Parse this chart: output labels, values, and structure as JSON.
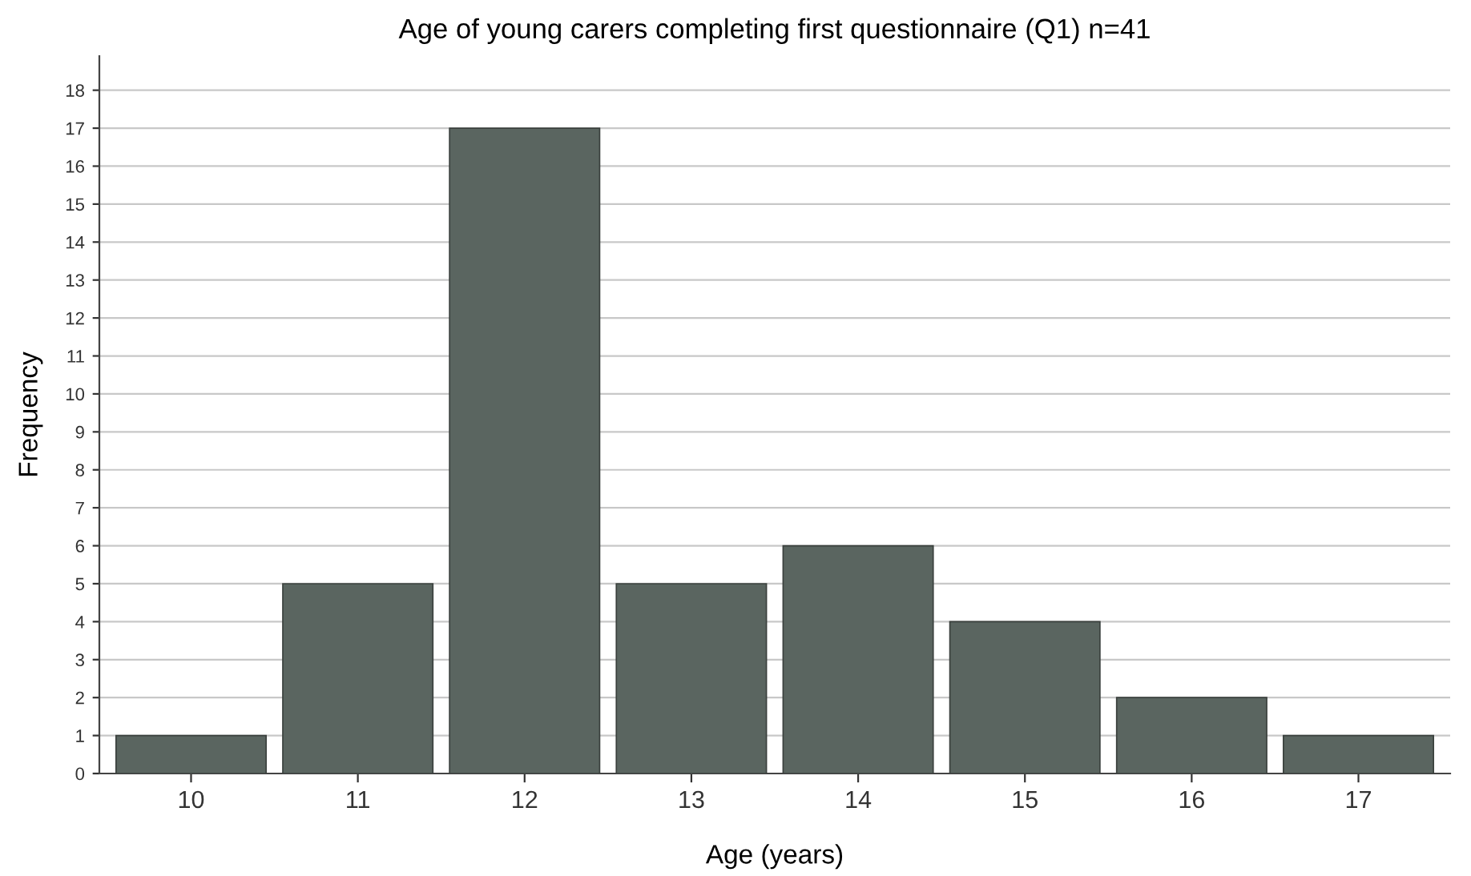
{
  "chart_data": {
    "type": "bar",
    "title": "Age of young carers completing first questionnaire (Q1) n=41",
    "xlabel": "Age (years)",
    "ylabel": "Frequency",
    "categories": [
      "10",
      "11",
      "12",
      "13",
      "14",
      "15",
      "16",
      "17"
    ],
    "values": [
      1,
      5,
      17,
      5,
      6,
      4,
      2,
      1
    ],
    "color": "#5a6560",
    "ylim": [
      0,
      18.9
    ],
    "yticks": [
      0,
      1,
      2,
      3,
      4,
      5,
      6,
      7,
      8,
      9,
      10,
      11,
      12,
      13,
      14,
      15,
      16,
      17,
      18
    ],
    "grid": "y",
    "legend": false
  }
}
